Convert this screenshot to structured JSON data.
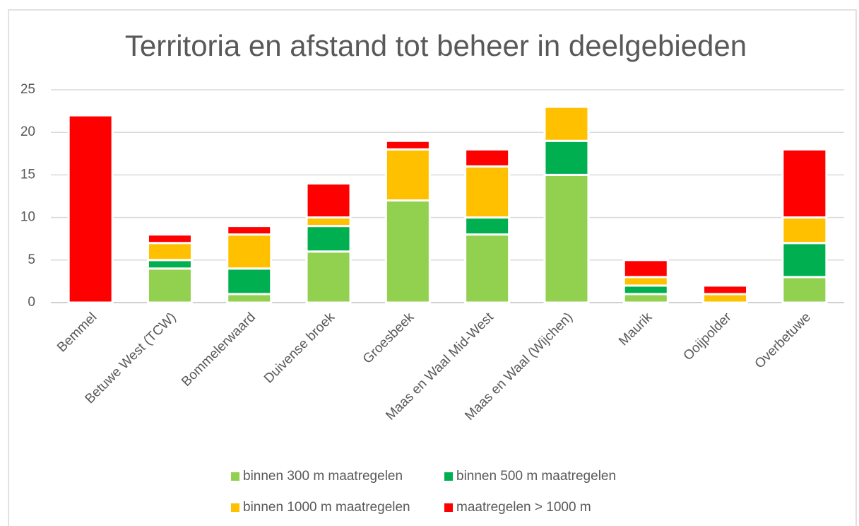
{
  "chart_data": {
    "type": "stacked_bar",
    "title": "Territoria en afstand tot beheer in deelgebieden",
    "categories": [
      "Bemmel",
      "Betuwe West (TCW)",
      "Bommelerwaard",
      "Duivense broek",
      "Groesbeek",
      "Maas en Waal Mid-West",
      "Maas en Waal (Wijchen)",
      "Maurik",
      "Ooijpolder",
      "Overbetuwe"
    ],
    "series": [
      {
        "name": "binnen 300 m maatregelen",
        "color": "#92d050",
        "values": [
          0,
          4,
          1,
          6,
          12,
          8,
          15,
          1,
          0,
          3
        ]
      },
      {
        "name": "binnen 500 m maatregelen",
        "color": "#00b050",
        "values": [
          0,
          1,
          3,
          3,
          0,
          2,
          4,
          1,
          0,
          4
        ]
      },
      {
        "name": "binnen 1000 m maatregelen",
        "color": "#ffc000",
        "values": [
          0,
          2,
          4,
          1,
          6,
          6,
          4,
          1,
          1,
          3
        ]
      },
      {
        "name": "maatregelen > 1000 m",
        "color": "#ff0000",
        "values": [
          22,
          1,
          1,
          4,
          1,
          2,
          0,
          2,
          1,
          8
        ]
      }
    ],
    "ylim": [
      0,
      25
    ],
    "yticks": [
      0,
      5,
      10,
      15,
      20,
      25
    ],
    "grid": true,
    "legend": "bottom"
  }
}
